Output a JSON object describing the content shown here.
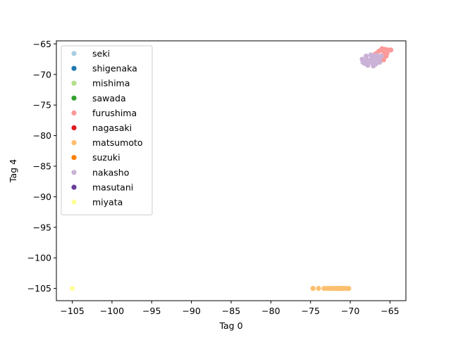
{
  "chart_data": {
    "type": "scatter",
    "title": "",
    "xlabel": "Tag 0",
    "ylabel": "Tag 4",
    "xlim": [
      -107,
      -63
    ],
    "ylim": [
      -107,
      -64.5
    ],
    "xticks": [
      -105,
      -100,
      -95,
      -90,
      -85,
      -80,
      -75,
      -70,
      -65
    ],
    "yticks": [
      -65,
      -70,
      -75,
      -80,
      -85,
      -90,
      -95,
      -100,
      -105
    ],
    "xtick_labels": [
      "−105",
      "−100",
      "−95",
      "−90",
      "−85",
      "−80",
      "−75",
      "−70",
      "−65"
    ],
    "ytick_labels": [
      "−65",
      "−70",
      "−75",
      "−80",
      "−85",
      "−90",
      "−95",
      "−100",
      "−105"
    ],
    "grid": false,
    "legend_position": "upper-left",
    "series": [
      {
        "name": "seki",
        "color": "#a6cee3",
        "points": []
      },
      {
        "name": "shigenaka",
        "color": "#1f78b4",
        "points": []
      },
      {
        "name": "mishima",
        "color": "#b2df8a",
        "points": []
      },
      {
        "name": "sawada",
        "color": "#33a02c",
        "points": []
      },
      {
        "name": "furushima",
        "color": "#fb9a99",
        "points": [
          [
            -66.0,
            -65.8
          ],
          [
            -65.2,
            -66.0
          ],
          [
            -65.7,
            -66.3
          ],
          [
            -66.4,
            -66.2
          ],
          [
            -65.5,
            -67.0
          ],
          [
            -66.8,
            -66.6
          ],
          [
            -65.9,
            -66.9
          ],
          [
            -66.2,
            -67.4
          ],
          [
            -65.4,
            -66.6
          ],
          [
            -66.6,
            -67.0
          ],
          [
            -65.8,
            -67.6
          ],
          [
            -64.9,
            -66.0
          ],
          [
            -66.1,
            -66.0
          ],
          [
            -65.6,
            -65.9
          ],
          [
            -66.9,
            -67.3
          ]
        ]
      },
      {
        "name": "nagasaki",
        "color": "#e31a1c",
        "points": []
      },
      {
        "name": "matsumoto",
        "color": "#fdbf6f",
        "points": [
          [
            -74.7,
            -105.0
          ],
          [
            -74.0,
            -105.0
          ],
          [
            -73.3,
            -105.0
          ],
          [
            -72.9,
            -105.0
          ],
          [
            -72.6,
            -105.0
          ],
          [
            -72.3,
            -105.0
          ],
          [
            -72.0,
            -105.0
          ],
          [
            -71.8,
            -105.0
          ],
          [
            -71.6,
            -105.0
          ],
          [
            -71.4,
            -105.0
          ],
          [
            -71.2,
            -105.0
          ],
          [
            -71.0,
            -105.0
          ],
          [
            -70.8,
            -105.0
          ],
          [
            -70.5,
            -105.0
          ],
          [
            -70.2,
            -105.0
          ]
        ]
      },
      {
        "name": "suzuki",
        "color": "#ff7f00",
        "points": []
      },
      {
        "name": "nakasho",
        "color": "#cab2d6",
        "points": [
          [
            -68.5,
            -67.5
          ],
          [
            -68.2,
            -68.2
          ],
          [
            -67.9,
            -67.6
          ],
          [
            -67.6,
            -68.0
          ],
          [
            -67.3,
            -67.3
          ],
          [
            -67.1,
            -68.6
          ],
          [
            -66.9,
            -67.7
          ],
          [
            -66.6,
            -67.1
          ],
          [
            -66.4,
            -67.5
          ],
          [
            -66.1,
            -67.0
          ],
          [
            -67.4,
            -66.8
          ],
          [
            -67.8,
            -68.5
          ],
          [
            -66.8,
            -68.3
          ],
          [
            -68.0,
            -67.0
          ],
          [
            -67.0,
            -67.0
          ],
          [
            -66.3,
            -68.0
          ],
          [
            -68.4,
            -68.0
          ],
          [
            -67.5,
            -67.8
          ],
          [
            -66.7,
            -66.9
          ],
          [
            -67.2,
            -68.1
          ]
        ]
      },
      {
        "name": "masutani",
        "color": "#6a3d9a",
        "points": []
      },
      {
        "name": "miyata",
        "color": "#ffff99",
        "points": [
          [
            -105.0,
            -105.0
          ]
        ]
      }
    ]
  }
}
